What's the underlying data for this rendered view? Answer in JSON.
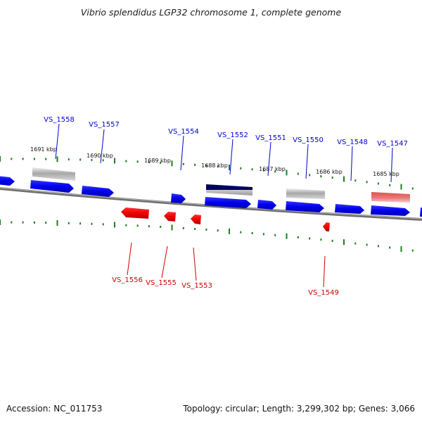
{
  "title": "Vibrio splendidus LGP32 chromosome 1, complete genome",
  "footer": {
    "accession": "Accession: NC_011753",
    "summary": "Topology: circular; Length: 3,299,302 bp; Genes: 3,066"
  },
  "colors": {
    "forward_gene": "#0000ee",
    "reverse_gene": "#ee0000",
    "forward_label": "#0000cc",
    "reverse_label": "#cc0000",
    "tick": "#1a7f1a",
    "backbone": "#888888",
    "grey_feature": "#a8a8a8",
    "navy_feature": "#000066",
    "pink_feature": "#e87878"
  },
  "scale_labels": [
    "1691 kbp",
    "1690 kbp",
    "1689 kbp",
    "1688 kbp",
    "1687 kbp",
    "1686 kbp",
    "1685 kbp"
  ],
  "forward_labels": [
    "VS_1558",
    "VS_1557",
    "VS_1554",
    "VS_1552",
    "VS_1551",
    "VS_1550",
    "VS_1548",
    "VS_1547"
  ],
  "reverse_labels": [
    "VS_1556",
    "VS_1555",
    "VS_1553",
    "VS_1549"
  ]
}
